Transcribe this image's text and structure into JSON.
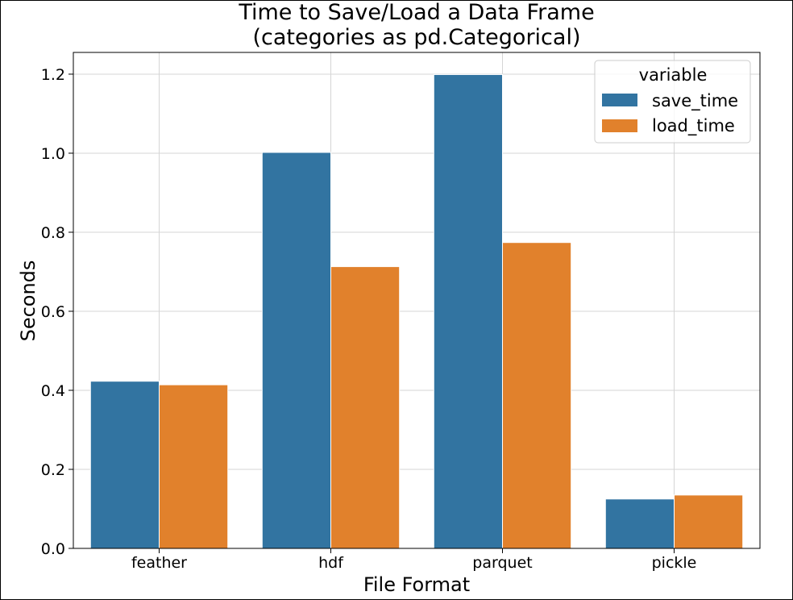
{
  "chart_data": {
    "type": "bar",
    "title": "Time to Save/Load a Data Frame",
    "subtitle": "(categories as pd.Categorical)",
    "xlabel": "File Format",
    "ylabel": "Seconds",
    "categories": [
      "feather",
      "hdf",
      "parquet",
      "pickle"
    ],
    "series": [
      {
        "name": "save_time",
        "color": "#3274a1",
        "values": [
          0.423,
          1.002,
          1.199,
          0.125
        ]
      },
      {
        "name": "load_time",
        "color": "#e1812c",
        "values": [
          0.414,
          0.713,
          0.774,
          0.135
        ]
      }
    ],
    "ylim": [
      0,
      1.255
    ],
    "yticks": [
      0.0,
      0.2,
      0.4,
      0.6,
      0.8,
      1.0,
      1.2
    ],
    "ytick_labels": [
      "0.0",
      "0.2",
      "0.4",
      "0.6",
      "0.8",
      "1.0",
      "1.2"
    ],
    "grid": true,
    "legend": {
      "title": "variable",
      "placement": "top-right"
    }
  }
}
